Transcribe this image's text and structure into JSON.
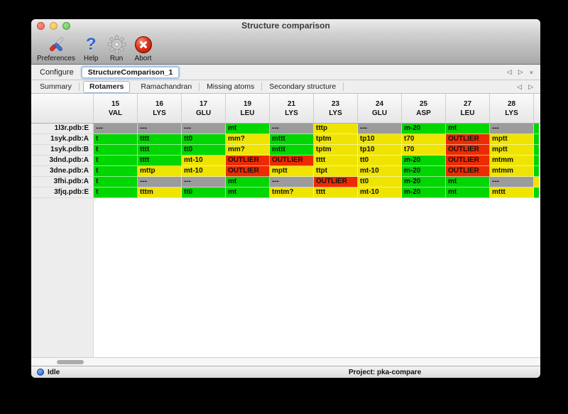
{
  "window": {
    "title": "Structure comparison"
  },
  "toolbar": {
    "buttons": [
      {
        "label": "Preferences",
        "icon": "tools-icon"
      },
      {
        "label": "Help",
        "icon": "help-icon"
      },
      {
        "label": "Run",
        "icon": "gear-icon"
      },
      {
        "label": "Abort",
        "icon": "abort-icon"
      }
    ],
    "help_glyph": "?"
  },
  "configure": {
    "label": "Configure",
    "active_config": "StructureComparison_1",
    "prev_glyph": "◁",
    "next_glyph": "▷",
    "close_glyph": "×"
  },
  "tabs": {
    "items": [
      "Summary",
      "Rotamers",
      "Ramachandran",
      "Missing atoms",
      "Secondary structure"
    ],
    "active": "Rotamers",
    "prev_glyph": "◁",
    "next_glyph": "▷"
  },
  "table": {
    "colors": {
      "green": "#00D600",
      "yellow": "#EFE400",
      "red": "#ED2B00",
      "gray": "#9B9B9B"
    },
    "columns": [
      {
        "num": "15",
        "res": "VAL"
      },
      {
        "num": "16",
        "res": "LYS"
      },
      {
        "num": "17",
        "res": "GLU"
      },
      {
        "num": "19",
        "res": "LEU"
      },
      {
        "num": "21",
        "res": "LYS"
      },
      {
        "num": "23",
        "res": "LYS"
      },
      {
        "num": "24",
        "res": "GLU"
      },
      {
        "num": "25",
        "res": "ASP"
      },
      {
        "num": "27",
        "res": "LEU"
      },
      {
        "num": "28",
        "res": "LYS"
      }
    ],
    "rows": [
      {
        "label": "1l3r.pdb:E",
        "partial": "green",
        "cells": [
          {
            "t": "---",
            "c": "gray"
          },
          {
            "t": "---",
            "c": "gray"
          },
          {
            "t": "---",
            "c": "gray"
          },
          {
            "t": "mt",
            "c": "green"
          },
          {
            "t": "---",
            "c": "gray"
          },
          {
            "t": "tttp",
            "c": "yellow"
          },
          {
            "t": "---",
            "c": "gray"
          },
          {
            "t": "m-20",
            "c": "green"
          },
          {
            "t": "mt",
            "c": "green"
          },
          {
            "t": "---",
            "c": "gray"
          }
        ]
      },
      {
        "label": "1syk.pdb:A",
        "partial": "green",
        "cells": [
          {
            "t": "t",
            "c": "green"
          },
          {
            "t": "tttt",
            "c": "green"
          },
          {
            "t": "tt0",
            "c": "green"
          },
          {
            "t": "mm?",
            "c": "yellow"
          },
          {
            "t": "mttt",
            "c": "green"
          },
          {
            "t": "tptm",
            "c": "yellow"
          },
          {
            "t": "tp10",
            "c": "yellow"
          },
          {
            "t": "t70",
            "c": "yellow"
          },
          {
            "t": "OUTLIER",
            "c": "red"
          },
          {
            "t": "mptt",
            "c": "yellow"
          }
        ]
      },
      {
        "label": "1syk.pdb:B",
        "partial": "green",
        "cells": [
          {
            "t": "t",
            "c": "green"
          },
          {
            "t": "tttt",
            "c": "green"
          },
          {
            "t": "tt0",
            "c": "green"
          },
          {
            "t": "mm?",
            "c": "yellow"
          },
          {
            "t": "mttt",
            "c": "green"
          },
          {
            "t": "tptm",
            "c": "yellow"
          },
          {
            "t": "tp10",
            "c": "yellow"
          },
          {
            "t": "t70",
            "c": "yellow"
          },
          {
            "t": "OUTLIER",
            "c": "red"
          },
          {
            "t": "mptt",
            "c": "yellow"
          }
        ]
      },
      {
        "label": "3dnd.pdb:A",
        "partial": "green",
        "cells": [
          {
            "t": "t",
            "c": "green"
          },
          {
            "t": "tttt",
            "c": "green"
          },
          {
            "t": "mt-10",
            "c": "yellow"
          },
          {
            "t": "OUTLIER",
            "c": "red"
          },
          {
            "t": "OUTLIER",
            "c": "red"
          },
          {
            "t": "tttt",
            "c": "yellow"
          },
          {
            "t": "tt0",
            "c": "yellow"
          },
          {
            "t": "m-20",
            "c": "green"
          },
          {
            "t": "OUTLIER",
            "c": "red"
          },
          {
            "t": "mtmm",
            "c": "yellow"
          }
        ]
      },
      {
        "label": "3dne.pdb:A",
        "partial": "green",
        "cells": [
          {
            "t": "t",
            "c": "green"
          },
          {
            "t": "mttp",
            "c": "yellow"
          },
          {
            "t": "mt-10",
            "c": "yellow"
          },
          {
            "t": "OUTLIER",
            "c": "red"
          },
          {
            "t": "mptt",
            "c": "yellow"
          },
          {
            "t": "ttpt",
            "c": "yellow"
          },
          {
            "t": "mt-10",
            "c": "yellow"
          },
          {
            "t": "m-20",
            "c": "green"
          },
          {
            "t": "OUTLIER",
            "c": "red"
          },
          {
            "t": "mtmm",
            "c": "yellow"
          }
        ]
      },
      {
        "label": "3fhi.pdb:A",
        "partial": "yellow",
        "cells": [
          {
            "t": "t",
            "c": "green"
          },
          {
            "t": "---",
            "c": "gray"
          },
          {
            "t": "---",
            "c": "gray"
          },
          {
            "t": "mt",
            "c": "green"
          },
          {
            "t": "---",
            "c": "gray"
          },
          {
            "t": "OUTLIER",
            "c": "red"
          },
          {
            "t": "tt0",
            "c": "yellow"
          },
          {
            "t": "m-20",
            "c": "green"
          },
          {
            "t": "mt",
            "c": "green"
          },
          {
            "t": "---",
            "c": "gray"
          }
        ]
      },
      {
        "label": "3fjq.pdb:E",
        "partial": "green",
        "cells": [
          {
            "t": "t",
            "c": "green"
          },
          {
            "t": "tttm",
            "c": "yellow"
          },
          {
            "t": "tt0",
            "c": "green"
          },
          {
            "t": "mt",
            "c": "green"
          },
          {
            "t": "tmtm?",
            "c": "yellow"
          },
          {
            "t": "tttt",
            "c": "yellow"
          },
          {
            "t": "mt-10",
            "c": "yellow"
          },
          {
            "t": "m-20",
            "c": "green"
          },
          {
            "t": "mt",
            "c": "green"
          },
          {
            "t": "mttt",
            "c": "yellow"
          }
        ]
      }
    ]
  },
  "statusbar": {
    "status": "Idle",
    "project": "Project: pka-compare"
  }
}
